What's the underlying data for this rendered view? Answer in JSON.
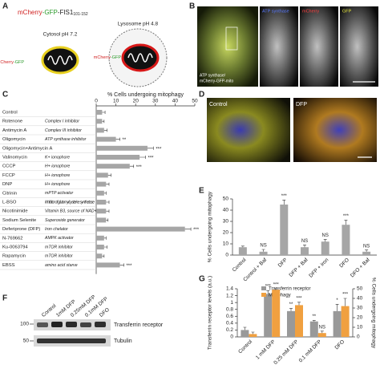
{
  "panel_labels": [
    "A",
    "B",
    "C",
    "D",
    "E",
    "F",
    "G"
  ],
  "panel_a": {
    "construct_parts": [
      "mCherry",
      "-GFP",
      "-FIS1"
    ],
    "construct_subscript": "101-152",
    "cytosol_label": "Cytosol pH 7.2",
    "lysosome_label": "Lysosome pH 4.8",
    "cytosol_probe": [
      "mCherry",
      "-GFP"
    ],
    "lysosome_probe": [
      "mCherry",
      "-GFP"
    ]
  },
  "panel_b": {
    "channels": [
      "ATP synthase",
      "mCherry",
      "GFP"
    ],
    "merge_label": [
      "ATP synthase/",
      "mCherry-GFP-mito"
    ]
  },
  "panel_d": {
    "conditions": [
      "Control",
      "DFP"
    ]
  },
  "panel_f": {
    "lanes": [
      "Control",
      "1mM DFP",
      "0.25mM DFP",
      "0.1mM DFP",
      "DFO"
    ],
    "markers": [
      "100",
      "50"
    ],
    "bands": [
      "Transferrin receptor",
      "Tubulin"
    ]
  },
  "chart_data": [
    {
      "type": "hbar",
      "xlabel": "% Cells undergoing mitophagy",
      "categories": [
        "Control",
        "Rotenone",
        "Antimycin A",
        "Oligomycin",
        "Oligomycin+Antimycin A",
        "Valinomycin",
        "CCCP",
        "FCCP",
        "DNP",
        "Citrinin",
        "L-BSO",
        "Nicotinimide",
        "Sodium Selenite",
        "Deferiprone (DFP)",
        "N-769662",
        "Ku-0063794",
        "Rapamycin",
        "EBSS"
      ],
      "descriptions": [
        null,
        "Complex I inhibitor",
        "Complex III inhibitor",
        "ATP synthase inhibitor",
        null,
        "K+ ionophore",
        "H+ ionophore",
        "H+ ionophore",
        "H+ ionophore",
        "mPTP activator",
        "Inhibitor of glutamylcysteine synthetase",
        "Vitamin B3, source of NAD+",
        "Superoxide generator",
        "Iron chelator",
        "AMPK activator",
        "mTOR inhibitor",
        "mTOR inhibitor",
        "amino acid starve"
      ],
      "values": [
        3,
        3,
        4,
        10,
        26,
        22,
        17,
        6,
        5,
        4,
        5,
        5,
        5,
        45,
        4,
        4,
        3,
        12
      ],
      "errors": [
        1.5,
        1,
        1.5,
        2,
        3,
        3,
        2,
        1.5,
        1.5,
        1,
        1.5,
        1.5,
        1,
        3,
        1,
        1.5,
        1,
        2
      ],
      "significance": [
        null,
        null,
        null,
        "**",
        "***",
        "***",
        "***",
        null,
        null,
        null,
        null,
        null,
        null,
        "***",
        null,
        null,
        null,
        "***"
      ],
      "xlim": [
        0,
        50
      ],
      "xticks": [
        0,
        10,
        20,
        30,
        40,
        50
      ],
      "color": "#a6a6a6"
    },
    {
      "type": "bar",
      "ylabel": "% Cells undergoing mitophagy",
      "categories": [
        "Control",
        "Control + Baf",
        "DFP",
        "DFP + Baf",
        "DFP + iron",
        "DFO",
        "DFO + Baf"
      ],
      "values": [
        7,
        3,
        45,
        7,
        12,
        27,
        3
      ],
      "errors": [
        1,
        2,
        4,
        2,
        2,
        4,
        1.5
      ],
      "significance": [
        null,
        "NS",
        "***",
        "NS",
        "NS",
        "***",
        "NS"
      ],
      "ylim": [
        0,
        50
      ],
      "yticks": [
        0,
        10,
        20,
        30,
        40,
        50
      ],
      "color": "#a6a6a6"
    },
    {
      "type": "grouped_bar",
      "ylabel": "Transferrin receptor levels (a.u.)",
      "y2label": "% Cells undergoing mitophagy",
      "categories": [
        "Control",
        "1 mM DFP",
        "0.25 mM DFP",
        "0.1 mM DFP",
        "DFO"
      ],
      "series": [
        {
          "name": "Transferrin receptor",
          "color": "#999999",
          "values": [
            0.2,
            1.25,
            0.75,
            0.45,
            0.75
          ],
          "errors": [
            0.08,
            0.1,
            0.08,
            0.03,
            0.2
          ],
          "significance": [
            null,
            "***",
            "**",
            "**",
            "*"
          ]
        },
        {
          "name": "Mitophagy",
          "color": "#f0a040",
          "axis": "y2",
          "values": [
            3,
            49,
            33,
            4,
            32
          ],
          "errors": [
            2,
            1,
            3,
            2,
            8
          ],
          "significance": [
            null,
            "***",
            "***",
            "NS",
            "***"
          ]
        }
      ],
      "ylim": [
        0,
        1.4
      ],
      "yticks": [
        0,
        0.2,
        0.4,
        0.6,
        0.8,
        1,
        1.2,
        1.4
      ],
      "y2lim": [
        0,
        50
      ],
      "y2ticks": [
        0,
        10,
        20,
        30,
        40,
        50
      ]
    }
  ]
}
